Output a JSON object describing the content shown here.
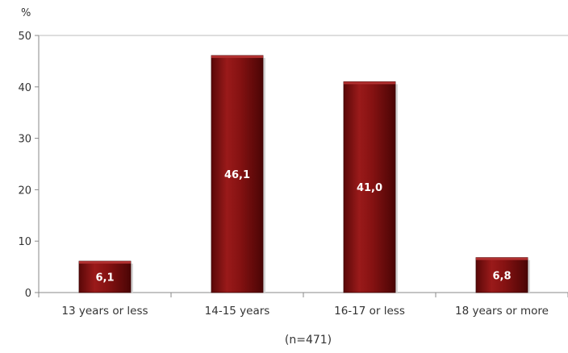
{
  "chart_data": {
    "type": "bar",
    "categories": [
      "13 years or less",
      "14-15 years",
      "16-17 or less",
      "18 years or more"
    ],
    "values": [
      6.1,
      46.1,
      41.0,
      6.8
    ],
    "value_labels": [
      "6,1",
      "46,1",
      "41,0",
      "6,8"
    ],
    "title": "",
    "xlabel": "(n=471)",
    "ylabel": "%",
    "ylim": [
      0,
      50
    ],
    "yticks": [
      0,
      10,
      20,
      30,
      40,
      50
    ],
    "grid": false,
    "legend": "none",
    "colors": {
      "bar": "#7a1010",
      "bar_highlight": "#b03030",
      "bar_shadow": "#4a0606",
      "label_text": "#ffffff",
      "axis": "#888888"
    }
  }
}
